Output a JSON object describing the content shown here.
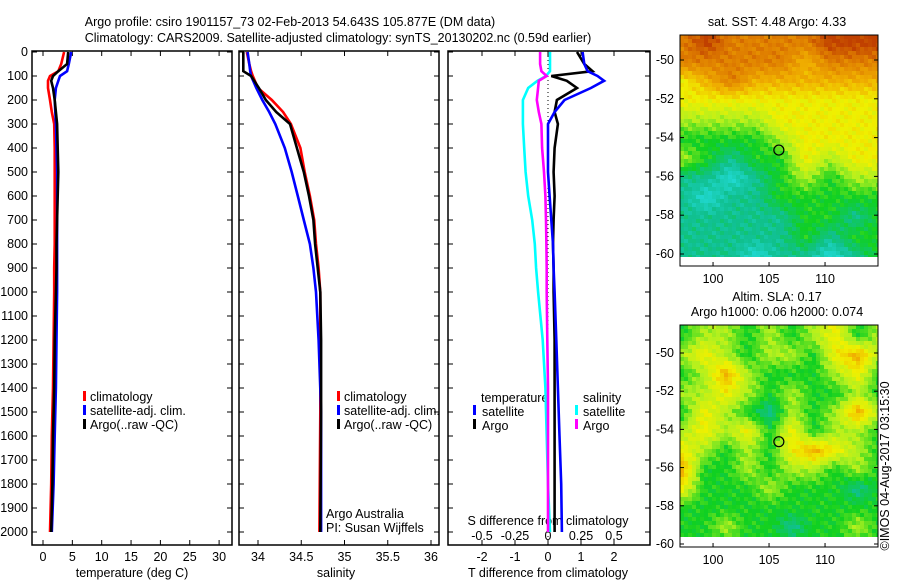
{
  "title": {
    "line1": "Argo profile: csiro 1901157_73 02-Feb-2013 54.643S 105.877E (DM data)",
    "line2": "Climatology: CARS2009. Satellite-adjusted climatology: synTS_20130202.nc (0.59d earlier)"
  },
  "credit": "©IMOS 04-Aug-2017 03:15:30",
  "chart_data": [
    {
      "type": "line",
      "id": "temperature",
      "xlabel": "temperature (deg C)",
      "ylabel": "depth",
      "xlim": [
        -1.9,
        31.2
      ],
      "ylim": [
        2055,
        0
      ],
      "xticks": [
        0,
        5,
        10,
        15,
        20,
        25,
        30
      ],
      "yticks": [
        0,
        100,
        200,
        300,
        400,
        500,
        600,
        700,
        800,
        900,
        1000,
        1100,
        1200,
        1300,
        1400,
        1500,
        1600,
        1700,
        1800,
        1900,
        2000
      ],
      "depth": [
        0,
        50,
        80,
        100,
        120,
        150,
        200,
        250,
        300,
        400,
        500,
        600,
        700,
        800,
        900,
        1000,
        1200,
        1400,
        1600,
        1800,
        2000
      ],
      "series": [
        {
          "name": "climatology",
          "color": "#ff0000",
          "values": [
            3.6,
            3.1,
            2.6,
            1.2,
            0.85,
            0.85,
            1.2,
            1.5,
            1.9,
            2.0,
            2.0,
            2.0,
            2.0,
            2.0,
            1.9,
            1.9,
            1.8,
            1.7,
            1.5,
            1.4,
            1.2
          ]
        },
        {
          "name": "satellite-adj. clim.",
          "color": "#0000ff",
          "values": [
            4.8,
            4.4,
            4.1,
            2.9,
            2.6,
            2.2,
            2.0,
            2.1,
            2.2,
            2.3,
            2.4,
            2.4,
            2.4,
            2.4,
            2.4,
            2.4,
            2.3,
            2.2,
            2.0,
            1.8,
            1.5
          ]
        },
        {
          "name": "Argo(..raw -QC)",
          "color": "#000000",
          "values": [
            4.3,
            4.1,
            2.6,
            1.7,
            1.4,
            1.7,
            2.0,
            2.2,
            2.4,
            2.5,
            2.6,
            2.5,
            2.4,
            2.3,
            2.3,
            2.2,
            2.0,
            1.9,
            1.7,
            1.6,
            1.4
          ]
        }
      ],
      "legend": [
        "climatology",
        "satellite-adj. clim.",
        "Argo(..raw -QC)"
      ]
    },
    {
      "type": "line",
      "id": "salinity",
      "xlabel": "salinity",
      "xlim": [
        33.78,
        36.1
      ],
      "ylim": [
        2055,
        0
      ],
      "xticks": [
        "34",
        "34.5",
        "35",
        "35.5",
        "36"
      ],
      "depth": [
        0,
        50,
        80,
        100,
        150,
        200,
        250,
        300,
        400,
        500,
        600,
        700,
        800,
        900,
        1000,
        1200,
        1500,
        2000
      ],
      "series": [
        {
          "name": "climatology",
          "color": "#ff0000",
          "values": [
            33.87,
            33.9,
            33.92,
            33.94,
            34.0,
            34.16,
            34.29,
            34.38,
            34.49,
            34.54,
            34.6,
            34.65,
            34.67,
            34.7,
            34.72,
            34.72,
            34.72,
            34.71
          ]
        },
        {
          "name": "satellite-adj. clim.",
          "color": "#0000ff",
          "values": [
            33.88,
            33.9,
            33.91,
            33.92,
            33.98,
            34.05,
            34.13,
            34.2,
            34.31,
            34.39,
            34.46,
            34.53,
            34.6,
            34.64,
            34.67,
            34.7,
            34.73,
            34.73
          ]
        },
        {
          "name": "Argo(..raw -QC)",
          "color": "#000000",
          "values": [
            33.83,
            33.83,
            33.83,
            33.92,
            34.01,
            34.09,
            34.21,
            34.37,
            34.45,
            34.53,
            34.59,
            34.64,
            34.66,
            34.69,
            34.72,
            34.73,
            34.73,
            34.72
          ]
        }
      ],
      "legend": [
        "climatology",
        "satellite-adj. clim.",
        "Argo(..raw -QC)"
      ],
      "annotation": [
        "Argo Australia",
        "PI: Susan Wijffels"
      ]
    },
    {
      "type": "line",
      "id": "difference",
      "xlabel": "T difference from climatology",
      "x2label": "S difference from climatology",
      "t_xlim": [
        -3.03,
        3.09
      ],
      "t_xticks": [
        "-2",
        "-1",
        "0",
        "1",
        "2"
      ],
      "s_xticks": [
        "-0.5",
        "-0.25",
        "0",
        "0.25",
        "0.5"
      ],
      "depth": [
        0,
        50,
        80,
        100,
        120,
        150,
        200,
        250,
        300,
        400,
        500,
        600,
        700,
        800,
        900,
        1000,
        1200,
        1400,
        1600,
        1800,
        2000
      ],
      "series": [
        {
          "name": "temperature satellite",
          "color": "#0000ff",
          "quantity": "T",
          "values": [
            1.05,
            1.1,
            1.2,
            1.5,
            1.7,
            1.3,
            0.5,
            0.2,
            0.0,
            0.0,
            0.0,
            0.05,
            0.1,
            0.15,
            0.17,
            0.2,
            0.25,
            0.3,
            0.35,
            0.4,
            0.42
          ]
        },
        {
          "name": "temperature Argo",
          "color": "#000000",
          "quantity": "T",
          "values": [
            0.88,
            1.1,
            1.35,
            0.1,
            0.57,
            0.88,
            0.27,
            0.2,
            0.3,
            0.2,
            0.17,
            0.2,
            0.17,
            0.15,
            0.17,
            0.17,
            0.2,
            0.2,
            0.2,
            0.2,
            0.2
          ]
        },
        {
          "name": "salinity satellite",
          "color": "#00ffff",
          "quantity": "S",
          "values": [
            0.015,
            0.015,
            0.015,
            -0.015,
            -0.08,
            -0.15,
            -0.19,
            -0.19,
            -0.19,
            -0.18,
            -0.17,
            -0.15,
            -0.12,
            -0.1,
            -0.09,
            -0.075,
            -0.04,
            -0.02,
            -0.01,
            0.0,
            0.015
          ]
        },
        {
          "name": "salinity Argo",
          "color": "#ff00ff",
          "quantity": "S",
          "values": [
            -0.06,
            -0.06,
            -0.05,
            -0.01,
            -0.07,
            -0.075,
            -0.085,
            -0.07,
            -0.05,
            -0.045,
            -0.03,
            -0.02,
            -0.015,
            -0.012,
            -0.01,
            -0.01,
            -0.005,
            0.0,
            0.0,
            0.0,
            0.0
          ]
        }
      ],
      "legend": {
        "temperature": {
          "heading": "temperature",
          "items": [
            {
              "label": "satellite",
              "color": "#0000ff"
            },
            {
              "label": "Argo",
              "color": "#000000"
            }
          ]
        },
        "salinity": {
          "heading": "salinity",
          "items": [
            {
              "label": "satellite",
              "color": "#00ffff"
            },
            {
              "label": "Argo",
              "color": "#ff00ff"
            }
          ]
        }
      }
    },
    {
      "type": "heatmap",
      "id": "sst_map",
      "title": "sat. SST: 4.48 Argo: 4.33",
      "xlim": [
        97.05,
        114.7
      ],
      "ylim": [
        -60.15,
        -48.7
      ],
      "xticks": [
        "100",
        "105",
        "110"
      ],
      "yticks": [
        "-50",
        "-52",
        "-54",
        "-56",
        "-58",
        "-60"
      ],
      "argo_position": [
        105.877,
        -54.643
      ],
      "grid_lats": [
        -49,
        -50,
        -51,
        -52,
        -53,
        -54,
        -55,
        -56,
        -57,
        -58,
        -59,
        -60
      ],
      "grid_levels": [
        [
          6,
          7,
          6,
          6,
          6,
          6,
          7,
          7,
          7
        ],
        [
          6,
          6,
          6,
          6,
          6,
          5,
          6,
          6,
          6
        ],
        [
          4,
          5,
          6,
          5,
          5,
          5,
          5,
          5,
          5
        ],
        [
          4,
          4,
          4,
          4,
          4,
          4,
          4,
          4,
          4
        ],
        [
          3,
          3,
          3,
          3,
          4,
          4,
          4,
          4,
          4
        ],
        [
          2,
          2,
          2,
          2,
          3,
          4,
          4,
          4,
          4
        ],
        [
          3,
          2,
          1,
          2,
          2,
          4,
          3,
          4,
          4
        ],
        [
          1,
          1,
          0,
          1,
          2,
          3,
          2,
          3,
          3
        ],
        [
          1,
          0,
          1,
          1,
          2,
          2,
          2,
          2,
          2
        ],
        [
          1,
          1,
          1,
          1,
          1,
          2,
          2,
          1,
          2
        ],
        [
          1,
          1,
          1,
          1,
          1,
          2,
          1,
          2,
          2
        ],
        [
          1,
          1,
          1,
          0,
          1,
          1,
          0,
          1,
          2
        ]
      ]
    },
    {
      "type": "heatmap",
      "id": "sla_map",
      "title": "Altim. SLA: 0.17",
      "subtitle": "Argo h1000: 0.06 h2000: 0.074",
      "xlim": [
        97.05,
        114.7
      ],
      "ylim": [
        -60.15,
        -48.5
      ],
      "xticks": [
        "100",
        "105",
        "110"
      ],
      "yticks": [
        "-50",
        "-52",
        "-54",
        "-56",
        "-58",
        "-60"
      ],
      "argo_position": [
        105.877,
        -54.643
      ],
      "grid_lats": [
        -49,
        -50,
        -51,
        -52,
        -53,
        -54,
        -55,
        -56,
        -57,
        -58,
        -59,
        -60
      ],
      "grid_levels": [
        [
          2,
          3,
          3,
          2,
          3,
          2,
          3,
          4,
          2,
          3
        ],
        [
          3,
          4,
          3,
          2,
          3,
          3,
          2,
          4,
          5,
          3
        ],
        [
          2,
          3,
          5,
          3,
          2,
          2,
          2,
          3,
          4,
          2
        ],
        [
          3,
          3,
          4,
          3,
          2,
          3,
          2,
          2,
          3,
          2
        ],
        [
          2,
          4,
          3,
          2,
          1,
          3,
          2,
          3,
          5,
          3
        ],
        [
          3,
          4,
          3,
          4,
          2,
          4,
          2,
          3,
          3,
          2
        ],
        [
          4,
          3,
          2,
          3,
          2,
          4,
          5,
          4,
          3,
          2
        ],
        [
          5,
          2,
          2,
          3,
          2,
          3,
          3,
          2,
          3,
          2
        ],
        [
          4,
          2,
          2,
          2,
          3,
          2,
          2,
          2,
          1,
          2
        ],
        [
          2,
          2,
          2,
          2,
          2,
          2,
          2,
          2,
          2,
          2
        ],
        [
          2,
          2,
          3,
          2,
          2,
          1,
          2,
          2,
          3,
          2
        ],
        [
          2,
          2,
          2,
          2,
          2,
          2,
          2,
          2,
          2,
          2
        ]
      ]
    }
  ]
}
